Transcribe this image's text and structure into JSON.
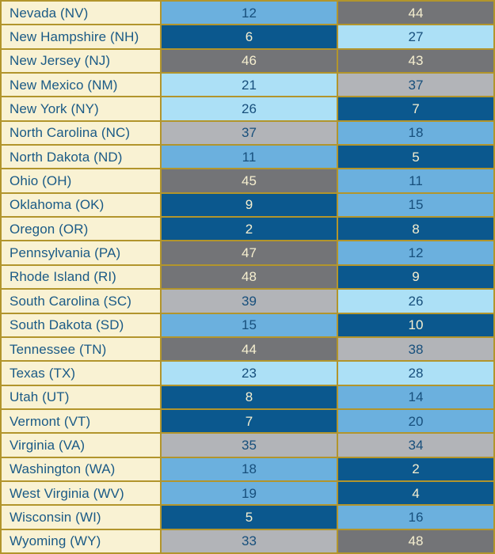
{
  "table": {
    "name": "state-ranking-table",
    "rows": [
      {
        "state": "Nevada (NV)",
        "values": [
          12,
          44
        ]
      },
      {
        "state": "New Hampshire (NH)",
        "values": [
          6,
          27
        ]
      },
      {
        "state": "New Jersey (NJ)",
        "values": [
          46,
          43
        ]
      },
      {
        "state": "New Mexico (NM)",
        "values": [
          21,
          37
        ]
      },
      {
        "state": "New York (NY)",
        "values": [
          26,
          7
        ]
      },
      {
        "state": "North Carolina (NC)",
        "values": [
          37,
          18
        ]
      },
      {
        "state": "North Dakota (ND)",
        "values": [
          11,
          5
        ]
      },
      {
        "state": "Ohio (OH)",
        "values": [
          45,
          11
        ]
      },
      {
        "state": "Oklahoma (OK)",
        "values": [
          9,
          15
        ]
      },
      {
        "state": "Oregon (OR)",
        "values": [
          2,
          8
        ]
      },
      {
        "state": "Pennsylvania (PA)",
        "values": [
          47,
          12
        ]
      },
      {
        "state": "Rhode Island (RI)",
        "values": [
          48,
          9
        ]
      },
      {
        "state": "South Carolina (SC)",
        "values": [
          39,
          26
        ]
      },
      {
        "state": "South Dakota (SD)",
        "values": [
          15,
          10
        ]
      },
      {
        "state": "Tennessee (TN)",
        "values": [
          44,
          38
        ]
      },
      {
        "state": "Texas (TX)",
        "values": [
          23,
          28
        ]
      },
      {
        "state": "Utah (UT)",
        "values": [
          8,
          14
        ]
      },
      {
        "state": "Vermont (VT)",
        "values": [
          7,
          20
        ]
      },
      {
        "state": "Virginia (VA)",
        "values": [
          35,
          34
        ]
      },
      {
        "state": "Washington (WA)",
        "values": [
          18,
          2
        ]
      },
      {
        "state": "West Virginia (WV)",
        "values": [
          19,
          4
        ]
      },
      {
        "state": "Wisconsin (WI)",
        "values": [
          5,
          16
        ]
      },
      {
        "state": "Wyoming (WY)",
        "values": [
          33,
          48
        ]
      }
    ]
  },
  "palette": {
    "border": "#B2952C",
    "state_bg": "#F9F2D3",
    "state_text": "#1A5A86",
    "tiers": [
      {
        "range": "1-10",
        "min": 1,
        "max": 10,
        "bg": "#0B588E",
        "text": "#F6EFD0"
      },
      {
        "range": "11-20",
        "min": 11,
        "max": 20,
        "bg": "#6BB0DE",
        "text": "#174F7C"
      },
      {
        "range": "21-30",
        "min": 21,
        "max": 30,
        "bg": "#ACE0F6",
        "text": "#174F7C"
      },
      {
        "range": "31-40",
        "min": 31,
        "max": 40,
        "bg": "#B2B4B8",
        "text": "#174F7C"
      },
      {
        "range": "41-50",
        "min": 41,
        "max": 50,
        "bg": "#737477",
        "text": "#F6EFD0"
      }
    ]
  },
  "chart_data": {
    "type": "table",
    "title": "",
    "columns": [
      "state",
      "rank_col_1",
      "rank_col_2"
    ],
    "rows": [
      [
        "Nevada (NV)",
        12,
        44
      ],
      [
        "New Hampshire (NH)",
        6,
        27
      ],
      [
        "New Jersey (NJ)",
        46,
        43
      ],
      [
        "New Mexico (NM)",
        21,
        37
      ],
      [
        "New York (NY)",
        26,
        7
      ],
      [
        "North Carolina (NC)",
        37,
        18
      ],
      [
        "North Dakota (ND)",
        11,
        5
      ],
      [
        "Ohio (OH)",
        45,
        11
      ],
      [
        "Oklahoma (OK)",
        9,
        15
      ],
      [
        "Oregon (OR)",
        2,
        8
      ],
      [
        "Pennsylvania (PA)",
        47,
        12
      ],
      [
        "Rhode Island (RI)",
        48,
        9
      ],
      [
        "South Carolina (SC)",
        39,
        26
      ],
      [
        "South Dakota (SD)",
        15,
        10
      ],
      [
        "Tennessee (TN)",
        44,
        38
      ],
      [
        "Texas (TX)",
        23,
        28
      ],
      [
        "Utah (UT)",
        8,
        14
      ],
      [
        "Vermont (VT)",
        7,
        20
      ],
      [
        "Virginia (VA)",
        35,
        34
      ],
      [
        "Washington (WA)",
        18,
        2
      ],
      [
        "West Virginia (WV)",
        19,
        4
      ],
      [
        "Wisconsin (WI)",
        5,
        16
      ],
      [
        "Wyoming (WY)",
        33,
        48
      ]
    ],
    "legend_note": "cell background encodes rank tier: 1-10 dark blue, 11-20 medium blue, 21-30 light blue, 31-40 light gray, 41-50 dark gray",
    "grid": true,
    "legend_position": "none"
  }
}
